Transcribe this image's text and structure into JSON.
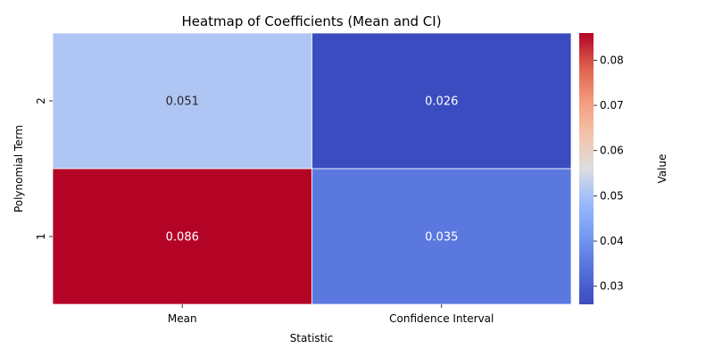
{
  "chart_data": {
    "type": "heatmap",
    "title": "Heatmap of Coefficients (Mean and CI)",
    "xlabel": "Statistic",
    "ylabel": "Polynomial Term",
    "x_categories": [
      "Mean",
      "Confidence Interval"
    ],
    "y_categories": [
      "2",
      "1"
    ],
    "values": [
      [
        0.051,
        0.026
      ],
      [
        0.086,
        0.035
      ]
    ],
    "cell_labels": [
      [
        "0.051",
        "0.026"
      ],
      [
        "0.086",
        "0.035"
      ]
    ],
    "colorbar": {
      "label": "Value",
      "colormap": "coolwarm",
      "range": [
        0.026,
        0.086
      ],
      "ticks": [
        0.03,
        0.04,
        0.05,
        0.06,
        0.07,
        0.08
      ],
      "tick_labels": [
        "0.03",
        "0.04",
        "0.05",
        "0.06",
        "0.07",
        "0.08"
      ]
    },
    "colors": {
      "low": "#3b4cc0",
      "mid": "#dddddd",
      "high": "#b40426"
    }
  }
}
